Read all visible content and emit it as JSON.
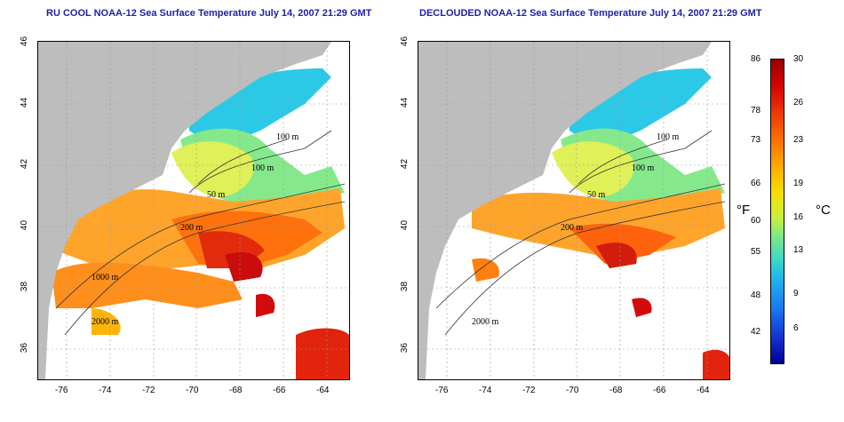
{
  "titles": {
    "left": "RU COOL NOAA-12 Sea Surface Temperature July 14, 2007 21:29 GMT",
    "right": "DECLOUDED NOAA-12 Sea Surface Temperature July 14, 2007 21:29 GMT"
  },
  "axes": {
    "x_ticks": [
      "-76",
      "-74",
      "-72",
      "-70",
      "-68",
      "-66",
      "-64"
    ],
    "y_ticks": [
      "36",
      "38",
      "40",
      "42",
      "44",
      "46"
    ]
  },
  "contour_labels": {
    "left": [
      "100 m",
      "100 m",
      "50 m",
      "200 m",
      "1000 m",
      "2000 m"
    ],
    "right": [
      "100 m",
      "100 m",
      "50 m",
      "200 m",
      "2000 m"
    ]
  },
  "colorbar": {
    "fahrenheit_ticks": [
      "86",
      "78",
      "73",
      "66",
      "60",
      "55",
      "48",
      "42"
    ],
    "celsius_ticks": [
      "30",
      "26",
      "23",
      "19",
      "16",
      "13",
      "9",
      "6"
    ],
    "f_unit": "°F",
    "c_unit": "°C"
  },
  "colors": {
    "land": "#bdbdbd",
    "title": "#1f1fa8"
  }
}
